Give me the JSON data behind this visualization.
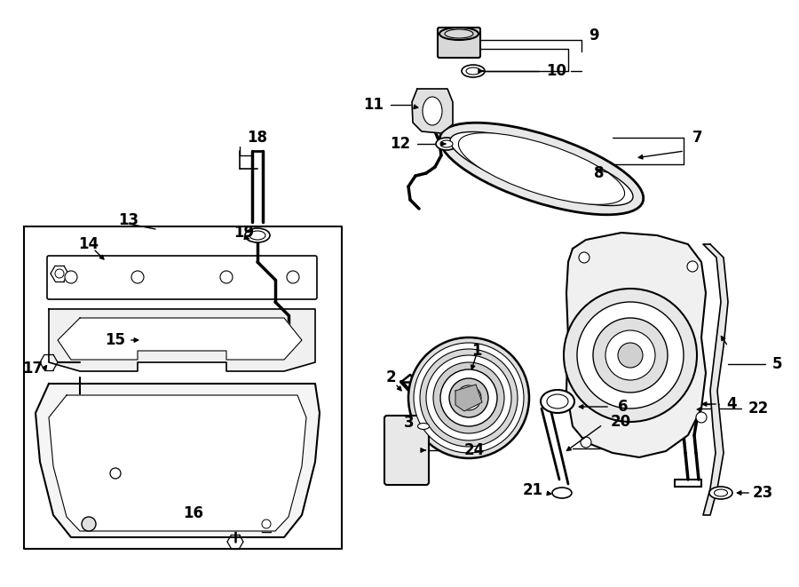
{
  "bg_color": "#ffffff",
  "line_color": "#000000",
  "fig_width": 9.0,
  "fig_height": 6.61,
  "dpi": 100,
  "fs": 12
}
